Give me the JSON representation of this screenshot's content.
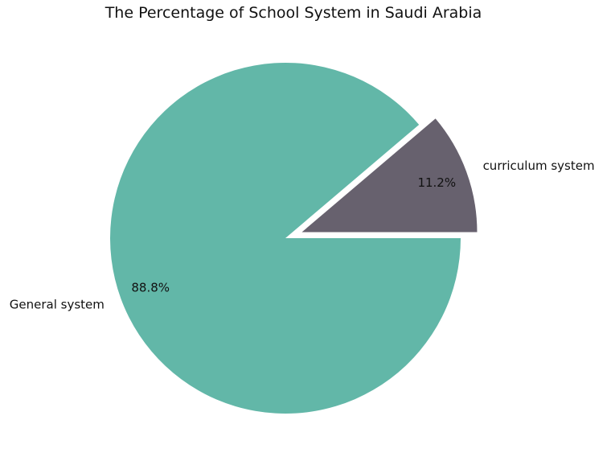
{
  "chart_data": {
    "type": "pie",
    "title": "The Percentage of School System in Saudi Arabia",
    "slices": [
      {
        "label": "General system",
        "value": 88.8,
        "pct_label": "88.8%",
        "color": "#62b7a8",
        "explode": 0
      },
      {
        "label": "curriculum system",
        "value": 11.2,
        "pct_label": "11.2%",
        "color": "#67616e",
        "explode": 0.1
      }
    ],
    "start_angle": 0,
    "direction": "clockwise"
  }
}
